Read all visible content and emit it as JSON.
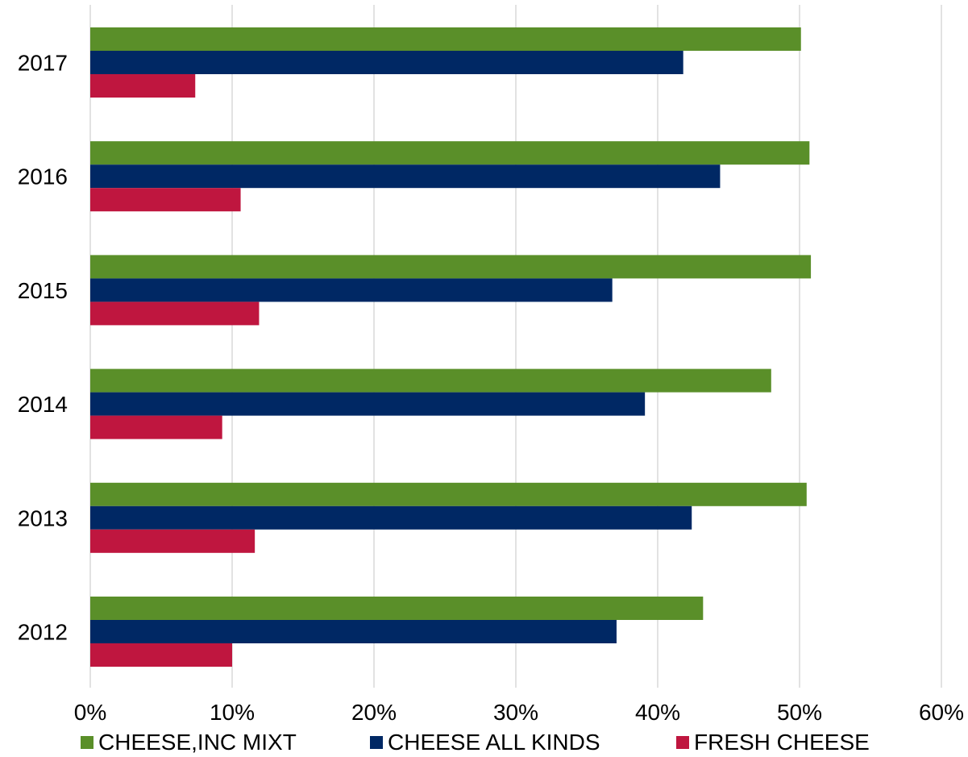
{
  "chart_data": {
    "type": "bar",
    "orientation": "horizontal",
    "title": "",
    "xlabel": "",
    "ylabel": "",
    "categories": [
      "2017",
      "2016",
      "2015",
      "2014",
      "2013",
      "2012"
    ],
    "x_ticks": [
      "0%",
      "10%",
      "20%",
      "30%",
      "40%",
      "50%",
      "60%"
    ],
    "xlim": [
      0,
      60
    ],
    "grid": true,
    "legend_position": "bottom",
    "series": [
      {
        "name": "CHEESE,INC MIXT",
        "color": "#5a8f29",
        "values": [
          50.1,
          50.7,
          50.8,
          48.0,
          50.5,
          43.2
        ]
      },
      {
        "name": "CHEESE ALL KINDS",
        "color": "#002864",
        "values": [
          41.8,
          44.4,
          36.8,
          39.1,
          42.4,
          37.1
        ]
      },
      {
        "name": "FRESH CHEESE",
        "color": "#bf163f",
        "values": [
          7.4,
          10.6,
          11.9,
          9.3,
          11.6,
          10.0
        ]
      }
    ]
  }
}
